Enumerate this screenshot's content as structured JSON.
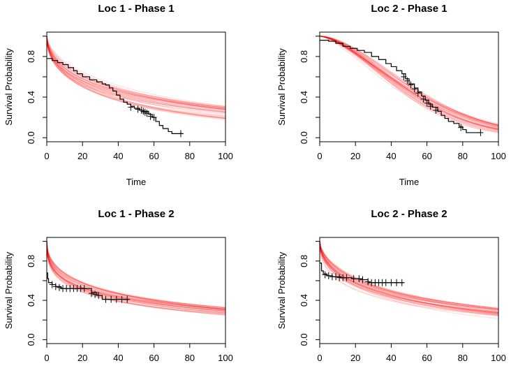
{
  "chart_data": [
    {
      "type": "line",
      "title": "Loc 1 - Phase 1",
      "xlabel": "Time",
      "ylabel": "Survival Probability",
      "xlim": [
        0,
        100
      ],
      "ylim": [
        0,
        1
      ],
      "xticks": [
        "0",
        "20",
        "40",
        "60",
        "80",
        "100"
      ],
      "yticks": [
        "0.0",
        "0.4",
        "0.8"
      ],
      "ytick_values": [
        0,
        0.4,
        0.8
      ],
      "xtick_values": [
        0,
        20,
        40,
        60,
        80,
        100
      ],
      "model": {
        "family": "weibull",
        "curves": 40,
        "scale_lo": 38,
        "scale_hi": 78,
        "shape_lo": 0.45,
        "shape_hi": 0.62,
        "color": "#ff0000"
      },
      "km_steps": [
        [
          0,
          0.78
        ],
        [
          3,
          0.76
        ],
        [
          6,
          0.74
        ],
        [
          9,
          0.72
        ],
        [
          12,
          0.69
        ],
        [
          15,
          0.66
        ],
        [
          17,
          0.63
        ],
        [
          20,
          0.6
        ],
        [
          24,
          0.57
        ],
        [
          28,
          0.55
        ],
        [
          31,
          0.53
        ],
        [
          33,
          0.52
        ],
        [
          35,
          0.49
        ],
        [
          37,
          0.46
        ],
        [
          39,
          0.42
        ],
        [
          41,
          0.38
        ],
        [
          43,
          0.35
        ],
        [
          45,
          0.33
        ],
        [
          47,
          0.31
        ],
        [
          49,
          0.29
        ],
        [
          52,
          0.27
        ],
        [
          54,
          0.26
        ],
        [
          57,
          0.23
        ],
        [
          59,
          0.2
        ],
        [
          61,
          0.16
        ],
        [
          63,
          0.12
        ],
        [
          65,
          0.09
        ],
        [
          68,
          0.06
        ],
        [
          70,
          0.04
        ],
        [
          76,
          0.04
        ]
      ],
      "censored": [
        [
          47,
          0.3
        ],
        [
          51,
          0.28
        ],
        [
          53,
          0.27
        ],
        [
          54,
          0.26
        ],
        [
          55,
          0.25
        ],
        [
          56,
          0.24
        ],
        [
          58,
          0.21
        ],
        [
          60,
          0.2
        ],
        [
          75,
          0.04
        ]
      ]
    },
    {
      "type": "line",
      "title": "Loc 2 - Phase 1",
      "xlabel": "Time",
      "ylabel": "Survival Probability",
      "xlim": [
        0,
        100
      ],
      "ylim": [
        0,
        1
      ],
      "xticks": [
        "0",
        "20",
        "40",
        "60",
        "80",
        "100"
      ],
      "yticks": [
        "0.0",
        "0.4",
        "0.8"
      ],
      "ytick_values": [
        0,
        0.4,
        0.8
      ],
      "xtick_values": [
        0,
        20,
        40,
        60,
        80,
        100
      ],
      "model": {
        "family": "weibull",
        "curves": 40,
        "scale_lo": 52,
        "scale_hi": 66,
        "shape_lo": 1.45,
        "shape_hi": 1.75,
        "color": "#ff0000"
      },
      "km_steps": [
        [
          0,
          0.96
        ],
        [
          5,
          0.95
        ],
        [
          9,
          0.93
        ],
        [
          13,
          0.9
        ],
        [
          17,
          0.88
        ],
        [
          21,
          0.86
        ],
        [
          25,
          0.84
        ],
        [
          29,
          0.8
        ],
        [
          33,
          0.77
        ],
        [
          37,
          0.73
        ],
        [
          40,
          0.7
        ],
        [
          43,
          0.66
        ],
        [
          46,
          0.63
        ],
        [
          48,
          0.58
        ],
        [
          50,
          0.53
        ],
        [
          53,
          0.49
        ],
        [
          55,
          0.45
        ],
        [
          57,
          0.41
        ],
        [
          59,
          0.37
        ],
        [
          61,
          0.33
        ],
        [
          63,
          0.3
        ],
        [
          66,
          0.26
        ],
        [
          68,
          0.22
        ],
        [
          70,
          0.19
        ],
        [
          72,
          0.16
        ],
        [
          75,
          0.14
        ],
        [
          78,
          0.11
        ],
        [
          80,
          0.08
        ],
        [
          82,
          0.05
        ],
        [
          90,
          0.05
        ]
      ],
      "censored": [
        [
          47,
          0.6
        ],
        [
          49,
          0.56
        ],
        [
          51,
          0.52
        ],
        [
          53,
          0.48
        ],
        [
          55,
          0.44
        ],
        [
          58,
          0.38
        ],
        [
          60,
          0.34
        ],
        [
          62,
          0.31
        ],
        [
          65,
          0.27
        ],
        [
          79,
          0.1
        ],
        [
          90,
          0.05
        ]
      ]
    },
    {
      "type": "line",
      "title": "Loc 1 - Phase 2",
      "xlabel": "",
      "ylabel": "Survival Probability",
      "xlim": [
        0,
        100
      ],
      "ylim": [
        0,
        1
      ],
      "xticks": [
        "0",
        "20",
        "40",
        "60",
        "80",
        "100"
      ],
      "yticks": [
        "0.0",
        "0.4",
        "0.8"
      ],
      "ytick_values": [
        0,
        0.4,
        0.8
      ],
      "xtick_values": [
        0,
        20,
        40,
        60,
        80,
        100
      ],
      "model": {
        "family": "weibull",
        "curves": 40,
        "scale_lo": 45,
        "scale_hi": 78,
        "shape_lo": 0.36,
        "shape_hi": 0.48,
        "color": "#ff0000"
      },
      "km_steps": [
        [
          0,
          0.68
        ],
        [
          0.5,
          0.62
        ],
        [
          1,
          0.58
        ],
        [
          3,
          0.56
        ],
        [
          5,
          0.54
        ],
        [
          8,
          0.52
        ],
        [
          21,
          0.52
        ],
        [
          25,
          0.48
        ],
        [
          28,
          0.45
        ],
        [
          31,
          0.41
        ],
        [
          46,
          0.41
        ]
      ],
      "censored": [
        [
          3,
          0.56
        ],
        [
          5,
          0.54
        ],
        [
          7,
          0.53
        ],
        [
          9,
          0.52
        ],
        [
          11,
          0.52
        ],
        [
          13,
          0.52
        ],
        [
          15,
          0.52
        ],
        [
          17,
          0.52
        ],
        [
          19,
          0.52
        ],
        [
          21,
          0.52
        ],
        [
          25,
          0.47
        ],
        [
          27,
          0.46
        ],
        [
          29,
          0.45
        ],
        [
          33,
          0.41
        ],
        [
          36,
          0.41
        ],
        [
          39,
          0.41
        ],
        [
          42,
          0.41
        ],
        [
          45,
          0.41
        ]
      ]
    },
    {
      "type": "line",
      "title": "Loc 2 - Phase 2",
      "xlabel": "",
      "ylabel": "Survival Probability",
      "xlim": [
        0,
        100
      ],
      "ylim": [
        0,
        1
      ],
      "xticks": [
        "0",
        "20",
        "40",
        "60",
        "80",
        "100"
      ],
      "yticks": [
        "0.0",
        "0.4",
        "0.8"
      ],
      "ytick_values": [
        0,
        0.4,
        0.8
      ],
      "xtick_values": [
        0,
        20,
        40,
        60,
        80,
        100
      ],
      "model": {
        "family": "weibull",
        "curves": 40,
        "scale_lo": 45,
        "scale_hi": 78,
        "shape_lo": 0.45,
        "shape_hi": 0.62,
        "color": "#ff0000"
      },
      "km_steps": [
        [
          0,
          0.78
        ],
        [
          1,
          0.7
        ],
        [
          2,
          0.67
        ],
        [
          4,
          0.65
        ],
        [
          7,
          0.64
        ],
        [
          12,
          0.63
        ],
        [
          18,
          0.62
        ],
        [
          24,
          0.61
        ],
        [
          27,
          0.58
        ],
        [
          47,
          0.58
        ]
      ],
      "censored": [
        [
          3,
          0.66
        ],
        [
          5,
          0.65
        ],
        [
          7,
          0.64
        ],
        [
          9,
          0.64
        ],
        [
          11,
          0.63
        ],
        [
          13,
          0.63
        ],
        [
          15,
          0.63
        ],
        [
          19,
          0.62
        ],
        [
          22,
          0.62
        ],
        [
          24,
          0.61
        ],
        [
          27,
          0.59
        ],
        [
          29,
          0.58
        ],
        [
          31,
          0.58
        ],
        [
          33,
          0.58
        ],
        [
          35,
          0.58
        ],
        [
          37,
          0.58
        ],
        [
          40,
          0.58
        ],
        [
          43,
          0.58
        ],
        [
          46,
          0.58
        ]
      ]
    }
  ]
}
